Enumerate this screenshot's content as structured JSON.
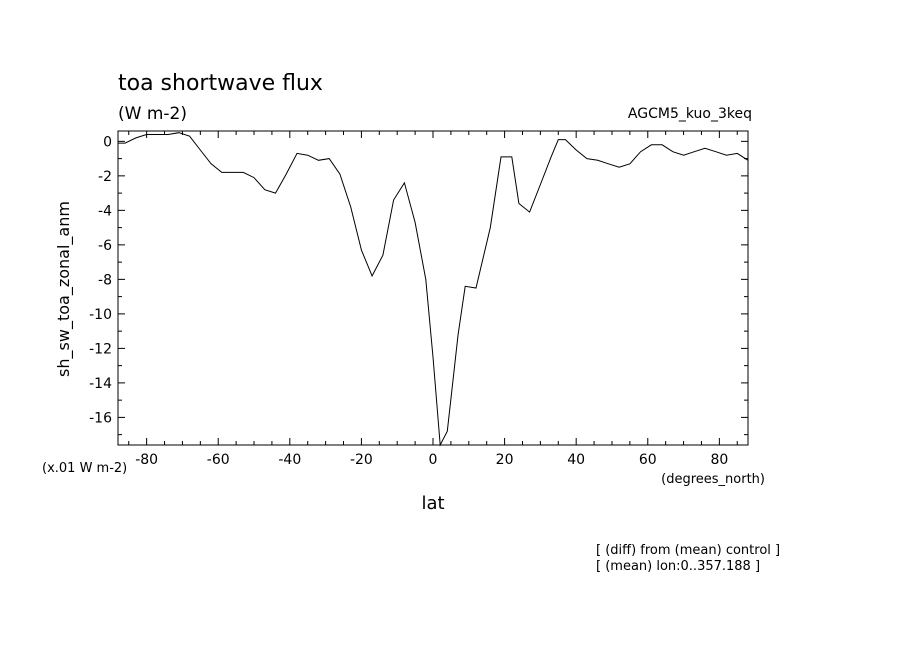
{
  "chart_data": {
    "type": "line",
    "title": "toa shortwave flux",
    "subtitle": "(W m-2)",
    "model_label": "AGCM5_kuo_3keq",
    "xlabel": "lat",
    "x_units": "(degrees_north)",
    "ylabel": "sh_sw_toa_zonal_anm",
    "y_scale_note": "(x.01 W m-2)",
    "notes": [
      "[ (diff) from (mean) control ]",
      "[ (mean) lon:0..357.188 ]"
    ],
    "xlim": [
      -88,
      88
    ],
    "ylim": [
      -17.6,
      0.6
    ],
    "xticks": [
      -80,
      -60,
      -40,
      -20,
      0,
      20,
      40,
      60,
      80
    ],
    "xtick_labels": [
      "-80",
      "-60",
      "-40",
      "-20",
      "0",
      "20",
      "40",
      "60",
      "80"
    ],
    "yticks": [
      0,
      -2,
      -4,
      -6,
      -8,
      -10,
      -12,
      -14,
      -16
    ],
    "ytick_labels": [
      "0",
      "-2",
      "-4",
      "-6",
      "-8",
      "-10",
      "-12",
      "-14",
      "-16"
    ],
    "grid": false,
    "series": [
      {
        "color": "#000000",
        "x": [
          -88,
          -86,
          -83,
          -80,
          -77,
          -74,
          -71,
          -68,
          -65,
          -62,
          -59,
          -56,
          -53,
          -50,
          -47,
          -44,
          -41,
          -38,
          -35,
          -32,
          -29,
          -26,
          -23,
          -20,
          -17,
          -14,
          -11,
          -8,
          -5,
          -2,
          0,
          2,
          4,
          7,
          9,
          12,
          16,
          19,
          22,
          24,
          27,
          30,
          33,
          35,
          37,
          40,
          43,
          46,
          49,
          52,
          55,
          58,
          61,
          64,
          67,
          70,
          73,
          76,
          79,
          82,
          85,
          88
        ],
        "y": [
          -0.1,
          -0.1,
          0.2,
          0.4,
          0.4,
          0.4,
          0.5,
          0.3,
          -0.5,
          -1.3,
          -1.8,
          -1.8,
          -1.8,
          -2.1,
          -2.8,
          -3.0,
          -1.9,
          -0.7,
          -0.8,
          -1.1,
          -1.0,
          -1.9,
          -3.8,
          -6.3,
          -7.8,
          -6.6,
          -3.4,
          -2.4,
          -4.7,
          -8.0,
          -12.5,
          -17.6,
          -16.8,
          -11.2,
          -8.4,
          -8.5,
          -5.0,
          -0.9,
          -0.9,
          -3.6,
          -4.1,
          -2.5,
          -0.9,
          0.1,
          0.1,
          -0.5,
          -1.0,
          -1.1,
          -1.3,
          -1.5,
          -1.3,
          -0.6,
          -0.2,
          -0.2,
          -0.6,
          -0.8,
          -0.6,
          -0.4,
          -0.6,
          -0.8,
          -0.7,
          -1.1
        ]
      }
    ]
  }
}
